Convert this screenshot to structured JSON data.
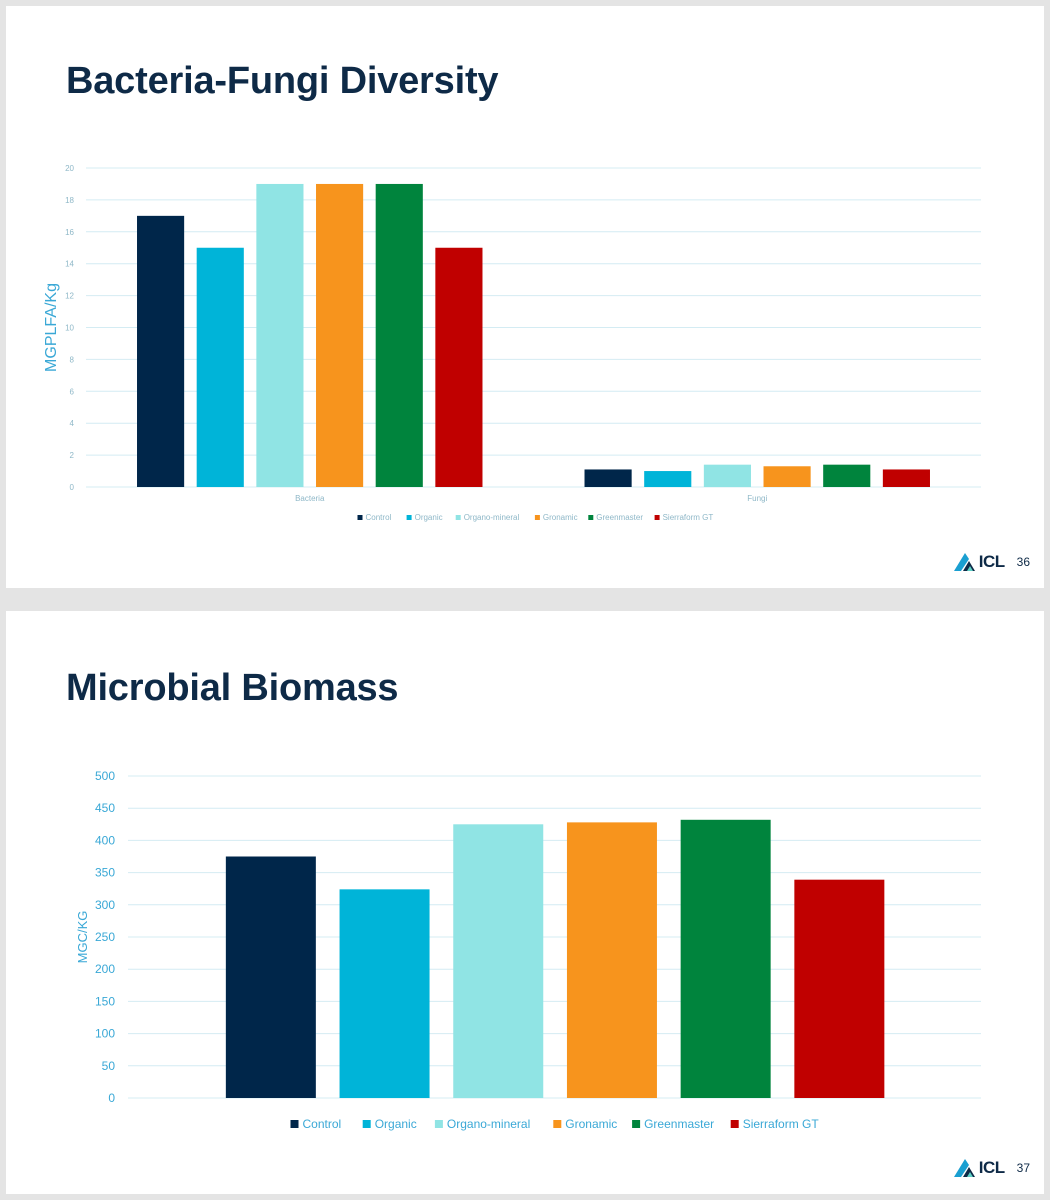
{
  "slides": [
    {
      "title": "Bacteria-Fungi Diversity",
      "page_number": "36",
      "logo_text": "ICL"
    },
    {
      "title": "Microbial Biomass",
      "page_number": "37",
      "logo_text": "ICL"
    }
  ],
  "colors": {
    "Control": "#00264a",
    "Organic": "#00b4d8",
    "Organo-mineral": "#90e4e4",
    "Gronamic": "#f7941d",
    "Greenmaster": "#00843d",
    "Sierraform GT": "#c00000"
  },
  "chart_data": [
    {
      "type": "bar",
      "title": "",
      "categories": [
        "Bacteria",
        "Fungi"
      ],
      "series": [
        {
          "name": "Control",
          "values": [
            17,
            1.1
          ]
        },
        {
          "name": "Organic",
          "values": [
            15,
            1.0
          ]
        },
        {
          "name": "Organo-mineral",
          "values": [
            19,
            1.4
          ]
        },
        {
          "name": "Gronamic",
          "values": [
            19,
            1.3
          ]
        },
        {
          "name": "Greenmaster",
          "values": [
            19,
            1.4
          ]
        },
        {
          "name": "Sierraform GT",
          "values": [
            15,
            1.1
          ]
        }
      ],
      "xlabel": "",
      "ylabel": "MGPLFA/Kg",
      "ylim": [
        0,
        20
      ],
      "yticks": [
        0,
        2,
        4,
        6,
        8,
        10,
        12,
        14,
        16,
        18,
        20
      ],
      "grid": true,
      "legend": "bottom"
    },
    {
      "type": "bar",
      "title": "",
      "categories": [
        "Control",
        "Organic",
        "Organo-mineral",
        "Gronamic",
        "Greenmaster",
        "Sierraform GT"
      ],
      "values": [
        375,
        324,
        425,
        428,
        432,
        339
      ],
      "xlabel": "",
      "ylabel": "MGC/KG",
      "ylim": [
        0,
        500
      ],
      "yticks": [
        0,
        50,
        100,
        150,
        200,
        250,
        300,
        350,
        400,
        450,
        500
      ],
      "grid": true,
      "legend": "bottom"
    }
  ]
}
